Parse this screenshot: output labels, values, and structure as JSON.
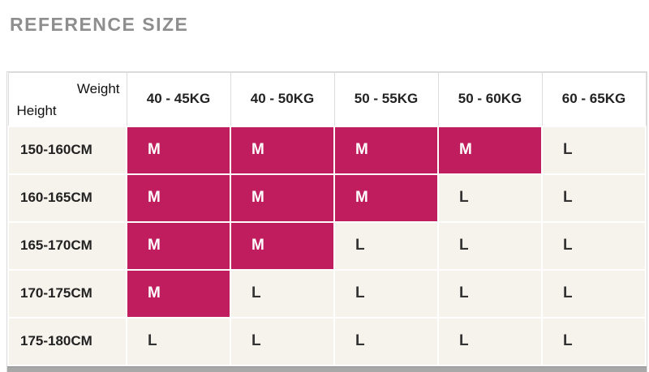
{
  "page": {
    "title": "REFERENCE SIZE"
  },
  "colors": {
    "highlight": "#c01d5e",
    "highlight_text": "#ffffff",
    "cell_bg": "#f6f3ec",
    "title_gray": "#8e8e8e"
  },
  "chart_data": {
    "type": "table",
    "title": "REFERENCE SIZE",
    "corner": {
      "top_right": "Weight",
      "bottom_left": "Height"
    },
    "columns": [
      "40 - 45KG",
      "40 - 50KG",
      "50 - 55KG",
      "50 - 60KG",
      "60 - 65KG"
    ],
    "rows": [
      {
        "label": "150-160CM",
        "values": [
          "M",
          "M",
          "M",
          "M",
          "L"
        ],
        "highlighted": [
          true,
          true,
          true,
          true,
          false
        ]
      },
      {
        "label": "160-165CM",
        "values": [
          "M",
          "M",
          "M",
          "L",
          "L"
        ],
        "highlighted": [
          true,
          true,
          true,
          false,
          false
        ]
      },
      {
        "label": "165-170CM",
        "values": [
          "M",
          "M",
          "L",
          "L",
          "L"
        ],
        "highlighted": [
          true,
          true,
          false,
          false,
          false
        ]
      },
      {
        "label": "170-175CM",
        "values": [
          "M",
          "L",
          "L",
          "L",
          "L"
        ],
        "highlighted": [
          true,
          false,
          false,
          false,
          false
        ]
      },
      {
        "label": "175-180CM",
        "values": [
          "L",
          "L",
          "L",
          "L",
          "L"
        ],
        "highlighted": [
          false,
          false,
          false,
          false,
          false
        ]
      }
    ]
  }
}
